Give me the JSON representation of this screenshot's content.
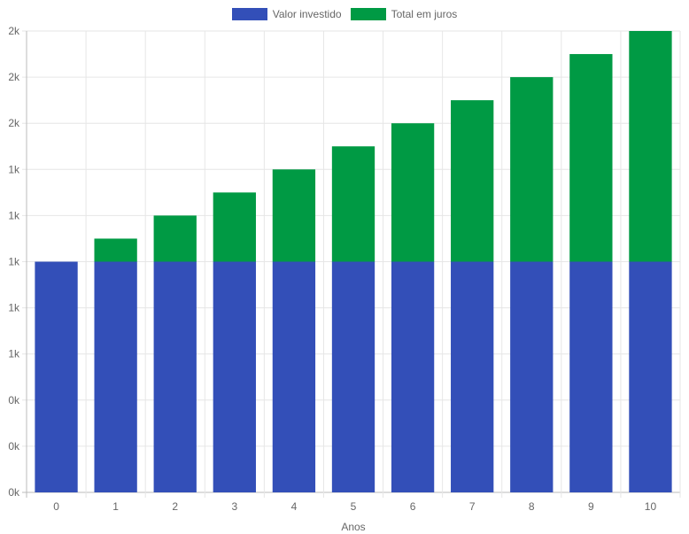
{
  "chart_data": {
    "type": "bar",
    "stacked": true,
    "title": "",
    "xlabel": "Anos",
    "ylabel": "",
    "categories": [
      "0",
      "1",
      "2",
      "3",
      "4",
      "5",
      "6",
      "7",
      "8",
      "9",
      "10"
    ],
    "series": [
      {
        "name": "Valor investido",
        "color": "#334fb8",
        "values": [
          1000,
          1000,
          1000,
          1000,
          1000,
          1000,
          1000,
          1000,
          1000,
          1000,
          1000
        ]
      },
      {
        "name": "Total em juros",
        "color": "#009a44",
        "values": [
          0,
          100,
          200,
          300,
          400,
          500,
          600,
          700,
          800,
          900,
          1000
        ]
      }
    ],
    "ylim": [
      0,
      2000
    ],
    "yticks": [
      0,
      200,
      400,
      600,
      800,
      1000,
      1200,
      1400,
      1600,
      1800,
      2000
    ],
    "ytick_labels": [
      "0k",
      "0k",
      "0k",
      "1k",
      "1k",
      "1k",
      "1k",
      "1k",
      "2k",
      "2k",
      "2k"
    ],
    "grid": true,
    "legend_position": "top-center"
  }
}
